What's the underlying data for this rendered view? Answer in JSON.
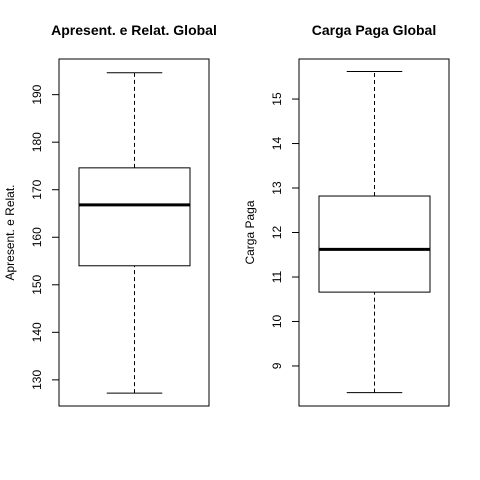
{
  "chart_data": [
    {
      "type": "boxplot",
      "title": "Apresent. e Relat. Global",
      "ylabel": "Apresent. e Relat.",
      "ylim": [
        124.5,
        197.5
      ],
      "yticks": [
        130,
        140,
        150,
        160,
        170,
        180,
        190
      ],
      "stats": {
        "min": 127.2,
        "q1": 154.0,
        "median": 166.8,
        "q3": 174.6,
        "max": 194.6
      }
    },
    {
      "type": "boxplot",
      "title": "Carga Paga Global",
      "ylabel": "Carga Paga",
      "ylim": [
        8.1,
        15.9
      ],
      "yticks": [
        9,
        10,
        11,
        12,
        13,
        14,
        15
      ],
      "stats": {
        "min": 8.4,
        "q1": 10.66,
        "median": 11.62,
        "q3": 12.82,
        "max": 15.62
      }
    }
  ]
}
